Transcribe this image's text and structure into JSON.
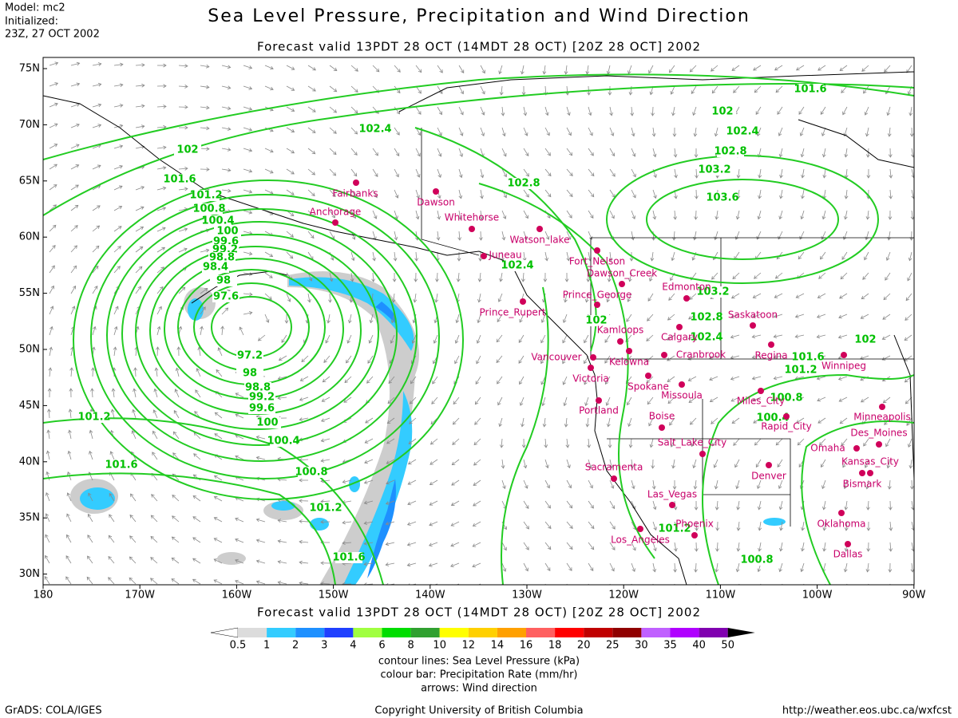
{
  "header": {
    "model": "Model: mc2",
    "initialized": "Initialized:",
    "init_time": "23Z, 27 OCT 2002",
    "title": "Sea Level Pressure, Precipitation and Wind Direction",
    "subtitle": "Forecast valid 13PDT 28 OCT (14MDT 28 OCT) [20Z 28 OCT] 2002"
  },
  "map": {
    "lat_labels": [
      "75N",
      "70N",
      "65N",
      "60N",
      "55N",
      "50N",
      "45N",
      "40N",
      "35N",
      "30N"
    ],
    "lon_labels": [
      "180",
      "170W",
      "160W",
      "150W",
      "140W",
      "130W",
      "120W",
      "110W",
      "100W",
      "90W"
    ],
    "contour_labels": [
      "101.6",
      "102",
      "102.4",
      "102.4",
      "102.8",
      "103.2",
      "102",
      "101.6",
      "101.2",
      "100.8",
      "100.4",
      "100",
      "99.6",
      "99.2",
      "98.8",
      "98.4",
      "98",
      "97.6",
      "97.2",
      "98",
      "98.8",
      "99.2",
      "99.6",
      "100",
      "100.4",
      "100.8",
      "101.2",
      "101.6",
      "101.2",
      "101.6",
      "102.8",
      "102.4",
      "103.6",
      "103.2",
      "102.8",
      "102.4",
      "102",
      "102",
      "101.6",
      "101.2",
      "100.8",
      "100.4",
      "101.2",
      "100.8"
    ],
    "cities": [
      "Fairbanks",
      "Anchorage",
      "Dawson",
      "Whitehorse",
      "Watson_lake",
      "Juneau",
      "Fort_Nelson",
      "Dawson_Creek",
      "Prince_George",
      "Edmonton",
      "Prince_Rupert",
      "Saskatoon",
      "Calgary",
      "Kamloops",
      "Kelowna",
      "Cranbrook",
      "Vancouver",
      "Regina",
      "Victoria",
      "Winnipeg",
      "Spokane",
      "Missoula",
      "Miles_City",
      "Portland",
      "Minneapolis",
      "Boise",
      "Rapid_City",
      "Des_Moines",
      "Salt_Lake_City",
      "Omaha",
      "Kansas_City",
      "Denver",
      "Sacramenta",
      "Bismark",
      "Las_Vegas",
      "Oklahoma",
      "Los_Angeles",
      "Phoenix",
      "Dallas"
    ]
  },
  "colorbar": {
    "labels": [
      "0.5",
      "1",
      "2",
      "3",
      "4",
      "6",
      "8",
      "10",
      "12",
      "14",
      "16",
      "18",
      "20",
      "25",
      "30",
      "35",
      "40",
      "50"
    ],
    "colors": [
      "#dcdcdc",
      "#33ccff",
      "#1e90ff",
      "#2040ff",
      "#a0ff40",
      "#00dd00",
      "#30a030",
      "#ffff00",
      "#ffd000",
      "#ffa000",
      "#ff6060",
      "#ff0000",
      "#c00000",
      "#900000",
      "#c060ff",
      "#b000ff",
      "#8000b0"
    ],
    "under_color": "#ffffff",
    "over_color": "#000000"
  },
  "notes": [
    "contour lines: Sea Level Pressure (kPa)",
    "colour bar: Precipitation Rate (mm/hr)",
    "arrows: Wind direction"
  ],
  "footer": {
    "left": "GrADS: COLA/IGES",
    "center": "Copyright University of British Columbia",
    "right": "http://weather.eos.ubc.ca/wxfcst"
  }
}
